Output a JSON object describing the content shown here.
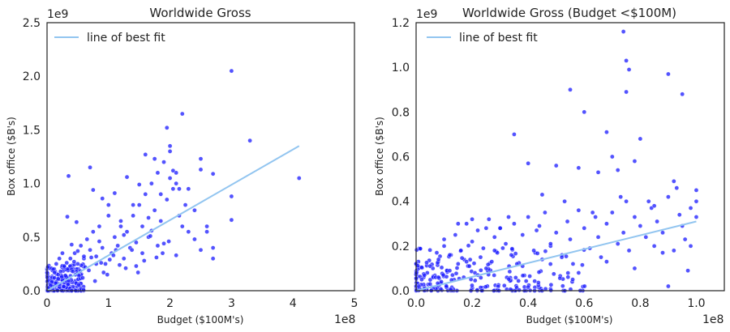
{
  "chart_data": [
    {
      "type": "scatter",
      "title": "Worldwide Gross",
      "xlabel": "Budget ($100M's)",
      "ylabel": "Box office ($B's)",
      "xlim": [
        0,
        500000000
      ],
      "ylim": [
        0,
        2500000000
      ],
      "x_offset_label": "1e8",
      "y_offset_label": "1e9",
      "x_ticks": [
        0,
        100000000,
        200000000,
        300000000,
        400000000,
        500000000
      ],
      "x_tick_labels": [
        "0",
        "1",
        "2",
        "3",
        "4",
        "5"
      ],
      "y_ticks": [
        0,
        500000000,
        1000000000,
        1500000000,
        2000000000,
        2500000000
      ],
      "y_tick_labels": [
        "0.0",
        "0.5",
        "1.0",
        "1.5",
        "2.0",
        "2.5"
      ],
      "grid": false,
      "legend": {
        "position": "top-left",
        "entries": [
          "line of best fit"
        ]
      },
      "colors": {
        "points": "#1a1aff",
        "fit_line": "#92c5f0"
      },
      "fit_line": {
        "x": [
          0,
          410000000
        ],
        "y": [
          0,
          1350000000
        ]
      },
      "points": {
        "x": [
          3000000,
          5000000,
          7000000,
          9000000,
          12000000,
          15000000,
          18000000,
          20000000,
          22000000,
          25000000,
          28000000,
          30000000,
          32000000,
          35000000,
          38000000,
          40000000,
          45000000,
          50000000,
          55000000,
          60000000,
          65000000,
          70000000,
          75000000,
          80000000,
          85000000,
          90000000,
          95000000,
          100000000,
          105000000,
          110000000,
          115000000,
          120000000,
          125000000,
          130000000,
          140000000,
          145000000,
          150000000,
          155000000,
          160000000,
          165000000,
          170000000,
          175000000,
          180000000,
          185000000,
          190000000,
          195000000,
          200000000,
          205000000,
          210000000,
          215000000,
          220000000,
          225000000,
          230000000,
          240000000,
          250000000,
          260000000,
          270000000,
          300000000,
          330000000,
          410000000,
          33000000,
          35000000,
          48000000,
          70000000,
          75000000,
          90000000,
          100000000,
          110000000,
          130000000,
          150000000,
          160000000,
          175000000,
          195000000,
          200000000,
          200000000,
          205000000,
          210000000,
          215000000,
          250000000,
          260000000,
          270000000,
          270000000,
          300000000,
          300000000,
          10000000,
          15000000,
          20000000,
          25000000,
          40000000,
          50000000,
          60000000,
          80000000,
          85000000,
          120000000,
          125000000,
          140000000,
          165000000,
          180000000,
          185000000,
          230000000,
          240000000,
          8000000,
          12000000,
          18000000,
          28000000,
          42000000,
          52000000,
          62000000,
          72000000,
          92000000,
          102000000,
          112000000,
          135000000,
          145000000,
          155000000,
          170000000,
          190000000,
          210000000,
          220000000,
          250000000,
          6000000,
          14000000,
          24000000,
          34000000,
          44000000,
          58000000,
          68000000,
          78000000,
          88000000,
          98000000,
          108000000,
          118000000,
          128000000,
          138000000,
          148000000,
          158000000,
          168000000,
          178000000,
          188000000,
          198000000
        ],
        "y": [
          30000000,
          60000000,
          90000000,
          40000000,
          120000000,
          80000000,
          150000000,
          60000000,
          180000000,
          100000000,
          220000000,
          140000000,
          260000000,
          90000000,
          300000000,
          200000000,
          350000000,
          250000000,
          420000000,
          300000000,
          480000000,
          380000000,
          550000000,
          320000000,
          600000000,
          400000000,
          250000000,
          700000000,
          350000000,
          500000000,
          420000000,
          650000000,
          300000000,
          550000000,
          700000000,
          450000000,
          800000000,
          600000000,
          900000000,
          500000000,
          1000000000,
          750000000,
          1100000000,
          650000000,
          1200000000,
          850000000,
          1300000000,
          950000000,
          1100000000,
          700000000,
          1650000000,
          800000000,
          950000000,
          750000000,
          1230000000,
          600000000,
          1090000000,
          2050000000,
          1400000000,
          1050000000,
          690000000,
          1070000000,
          640000000,
          1150000000,
          940000000,
          860000000,
          800000000,
          910000000,
          1060000000,
          990000000,
          1270000000,
          1230000000,
          1520000000,
          1350000000,
          1050000000,
          1120000000,
          1000000000,
          950000000,
          1130000000,
          550000000,
          400000000,
          300000000,
          880000000,
          660000000,
          200000000,
          250000000,
          300000000,
          350000000,
          430000000,
          370000000,
          320000000,
          250000000,
          460000000,
          600000000,
          520000000,
          800000000,
          680000000,
          420000000,
          900000000,
          550000000,
          480000000,
          80000000,
          170000000,
          110000000,
          230000000,
          180000000,
          140000000,
          220000000,
          310000000,
          170000000,
          290000000,
          380000000,
          400000000,
          230000000,
          350000000,
          560000000,
          440000000,
          330000000,
          600000000,
          380000000,
          50000000,
          70000000,
          130000000,
          60000000,
          270000000,
          120000000,
          190000000,
          90000000,
          260000000,
          150000000,
          330000000,
          240000000,
          210000000,
          380000000,
          170000000,
          280000000,
          510000000,
          310000000,
          350000000,
          460000000
        ]
      }
    },
    {
      "type": "scatter",
      "title": "Worldwide Gross (Budget <$100M)",
      "xlabel": "Budget ($100M's)",
      "ylabel": "Box office ($B's)",
      "xlim": [
        0,
        110000000
      ],
      "ylim": [
        0,
        1200000000
      ],
      "x_offset_label": "1e8",
      "y_offset_label": "1e9",
      "x_ticks": [
        0,
        20000000,
        40000000,
        60000000,
        80000000,
        100000000
      ],
      "x_tick_labels": [
        "0.0",
        "0.2",
        "0.4",
        "0.6",
        "0.8",
        "1.0"
      ],
      "y_ticks": [
        0,
        200000000,
        400000000,
        600000000,
        800000000,
        1000000000,
        1200000000
      ],
      "y_tick_labels": [
        "0.0",
        "0.2",
        "0.4",
        "0.6",
        "0.8",
        "1.0",
        "1.2"
      ],
      "grid": false,
      "legend": {
        "position": "top-left",
        "entries": [
          "line of best fit"
        ]
      },
      "colors": {
        "points": "#1a1aff",
        "fit_line": "#92c5f0"
      },
      "fit_line": {
        "x": [
          0,
          100000000
        ],
        "y": [
          0,
          310000000
        ]
      },
      "points": {
        "x": [
          1000000,
          2000000,
          3000000,
          4000000,
          5000000,
          6000000,
          7000000,
          8000000,
          9000000,
          10000000,
          11000000,
          12000000,
          13000000,
          14000000,
          15000000,
          16000000,
          17000000,
          18000000,
          19000000,
          20000000,
          21000000,
          22000000,
          23000000,
          24000000,
          25000000,
          26000000,
          27000000,
          28000000,
          29000000,
          30000000,
          32000000,
          34000000,
          35000000,
          36000000,
          38000000,
          40000000,
          42000000,
          44000000,
          45000000,
          46000000,
          48000000,
          50000000,
          52000000,
          54000000,
          55000000,
          56000000,
          58000000,
          60000000,
          62000000,
          64000000,
          65000000,
          66000000,
          68000000,
          70000000,
          72000000,
          74000000,
          75000000,
          76000000,
          78000000,
          80000000,
          82000000,
          84000000,
          85000000,
          86000000,
          88000000,
          90000000,
          92000000,
          94000000,
          95000000,
          96000000,
          98000000,
          100000000,
          35000000,
          40000000,
          50000000,
          55000000,
          58000000,
          65000000,
          68000000,
          72000000,
          74000000,
          75000000,
          75000000,
          76000000,
          80000000,
          90000000,
          95000000,
          100000000,
          100000000,
          20000000,
          30000000,
          45000000,
          60000000,
          70000000,
          78000000,
          85000000,
          92000000,
          98000000,
          10000000,
          15000000,
          25000000,
          33000000,
          43000000,
          53000000,
          63000000,
          73000000,
          83000000,
          93000000,
          3000000,
          5000000,
          8000000,
          12000000,
          18000000,
          22000000,
          28000000,
          38000000,
          48000000,
          58000000,
          68000000,
          78000000,
          88000000,
          90000000,
          97000000
        ],
        "y": [
          20000000,
          50000000,
          10000000,
          80000000,
          30000000,
          100000000,
          60000000,
          140000000,
          40000000,
          200000000,
          90000000,
          160000000,
          70000000,
          250000000,
          120000000,
          180000000,
          60000000,
          300000000,
          110000000,
          220000000,
          80000000,
          270000000,
          150000000,
          190000000,
          100000000,
          320000000,
          130000000,
          240000000,
          170000000,
          280000000,
          210000000,
          160000000,
          300000000,
          120000000,
          250000000,
          330000000,
          180000000,
          290000000,
          140000000,
          350000000,
          200000000,
          260000000,
          150000000,
          310000000,
          230000000,
          120000000,
          360000000,
          280000000,
          190000000,
          330000000,
          240000000,
          150000000,
          300000000,
          350000000,
          210000000,
          260000000,
          400000000,
          180000000,
          330000000,
          290000000,
          240000000,
          370000000,
          200000000,
          310000000,
          260000000,
          420000000,
          180000000,
          340000000,
          290000000,
          230000000,
          370000000,
          450000000,
          700000000,
          570000000,
          560000000,
          900000000,
          550000000,
          530000000,
          710000000,
          540000000,
          1160000000,
          1030000000,
          890000000,
          990000000,
          680000000,
          970000000,
          880000000,
          330000000,
          400000000,
          320000000,
          280000000,
          430000000,
          800000000,
          600000000,
          580000000,
          380000000,
          490000000,
          200000000,
          230000000,
          300000000,
          280000000,
          330000000,
          270000000,
          400000000,
          350000000,
          420000000,
          400000000,
          460000000,
          70000000,
          110000000,
          60000000,
          90000000,
          130000000,
          70000000,
          180000000,
          110000000,
          210000000,
          80000000,
          130000000,
          100000000,
          170000000,
          20000000,
          90000000
        ]
      }
    }
  ]
}
